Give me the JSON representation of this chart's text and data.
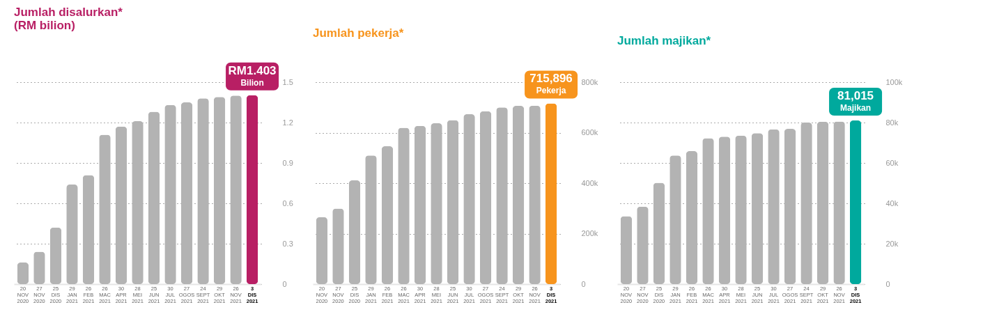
{
  "chart_data": [
    {
      "type": "bar",
      "title": "Jumlah disalurkan*\n(RM bilion)",
      "categories": [
        "20\nNOV\n2020",
        "27\nNOV\n2020",
        "25\nDIS\n2020",
        "29\nJAN\n2021",
        "26\nFEB\n2021",
        "26\nMAC\n2021",
        "30\nAPR\n2021",
        "28\nMEI\n2021",
        "25\nJUN\n2021",
        "30\nJUL\n2021",
        "27\nOGOS\n2021",
        "24\nSEPT\n2021",
        "29\nOKT\n2021",
        "26\nNOV\n2021",
        "3\nDIS\n2021"
      ],
      "values": [
        0.16,
        0.24,
        0.42,
        0.74,
        0.81,
        1.11,
        1.17,
        1.21,
        1.28,
        1.33,
        1.35,
        1.38,
        1.39,
        1.4,
        1.403
      ],
      "colors": [
        "#b3b3b3",
        "#b3b3b3",
        "#b3b3b3",
        "#b3b3b3",
        "#b3b3b3",
        "#b3b3b3",
        "#b3b3b3",
        "#b3b3b3",
        "#b3b3b3",
        "#b3b3b3",
        "#b3b3b3",
        "#b3b3b3",
        "#b3b3b3",
        "#b3b3b3",
        "#b81f64"
      ],
      "ylim": [
        0,
        1.5
      ],
      "yticks": [
        0,
        0.3,
        0.6,
        0.9,
        1.2,
        1.5
      ],
      "grid": "y",
      "annotations": [
        {
          "text": "RM1.403\nBilion",
          "x": "3\nDIS\n2021",
          "y": 1.403
        }
      ]
    },
    {
      "type": "bar",
      "title": "Jumlah pekerja*",
      "categories": [
        "20\nNOV\n2020",
        "27\nNOV\n2020",
        "25\nDIS\n2020",
        "29\nJAN\n2021",
        "26\nFEB\n2021",
        "26\nMAC\n2021",
        "30\nAPR\n2021",
        "28\nMEI\n2021",
        "25\nJUN\n2021",
        "30\nJUL\n2021",
        "27\nOGOS\n2021",
        "24\nSEPT\n2021",
        "29\nOKT\n2021",
        "26\nNOV\n2021",
        "3\nDIS\n2021"
      ],
      "values": [
        265000,
        299000,
        411000,
        510000,
        546000,
        619000,
        627000,
        637000,
        650000,
        673000,
        685000,
        700000,
        706000,
        707000,
        715896
      ],
      "colors": [
        "#b3b3b3",
        "#b3b3b3",
        "#b3b3b3",
        "#b3b3b3",
        "#b3b3b3",
        "#b3b3b3",
        "#b3b3b3",
        "#b3b3b3",
        "#b3b3b3",
        "#b3b3b3",
        "#b3b3b3",
        "#b3b3b3",
        "#b3b3b3",
        "#b3b3b3",
        "#f7941d"
      ],
      "ylim": [
        0,
        800000
      ],
      "yticks": [
        0,
        {
          "value": 200000,
          "label": "200k"
        },
        {
          "value": 400000,
          "label": "400k"
        },
        {
          "value": 600000,
          "label": "600k"
        },
        {
          "value": 800000,
          "label": "800k"
        }
      ],
      "grid": "y",
      "annotations": [
        {
          "text": "715,896\nPekerja",
          "x": "3\nDIS\n2021",
          "y": 715896
        }
      ]
    },
    {
      "type": "bar",
      "title": "Jumlah majikan*",
      "categories": [
        "20\nNOV\n2020",
        "27\nNOV\n2020",
        "25\nDIS\n2020",
        "29\nJAN\n2021",
        "26\nFEB\n2021",
        "26\nMAC\n2021",
        "30\nAPR\n2021",
        "28\nMEI\n2021",
        "25\nJUN\n2021",
        "30\nJUL\n2021",
        "27\nOGOS\n2021",
        "24\nSEPT\n2021",
        "29\nOKT\n2021",
        "26\nNOV\n2021",
        "3\nDIS\n2021"
      ],
      "values": [
        33600,
        38400,
        50200,
        63700,
        65900,
        72200,
        73000,
        73500,
        74700,
        76600,
        76900,
        80000,
        80400,
        80500,
        81015
      ],
      "colors": [
        "#b3b3b3",
        "#b3b3b3",
        "#b3b3b3",
        "#b3b3b3",
        "#b3b3b3",
        "#b3b3b3",
        "#b3b3b3",
        "#b3b3b3",
        "#b3b3b3",
        "#b3b3b3",
        "#b3b3b3",
        "#b3b3b3",
        "#b3b3b3",
        "#b3b3b3",
        "#00a99d"
      ],
      "ylim": [
        0,
        100000
      ],
      "yticks": [
        0,
        {
          "value": 20000,
          "label": "20k"
        },
        {
          "value": 40000,
          "label": "40k"
        },
        {
          "value": 60000,
          "label": "60k"
        },
        {
          "value": 80000,
          "label": "80k"
        },
        {
          "value": 100000,
          "label": "100k"
        }
      ],
      "grid": "y",
      "annotations": [
        {
          "text": "81,015\nMajikan",
          "x": "3\nDIS\n2021",
          "y": 81015
        }
      ]
    }
  ]
}
